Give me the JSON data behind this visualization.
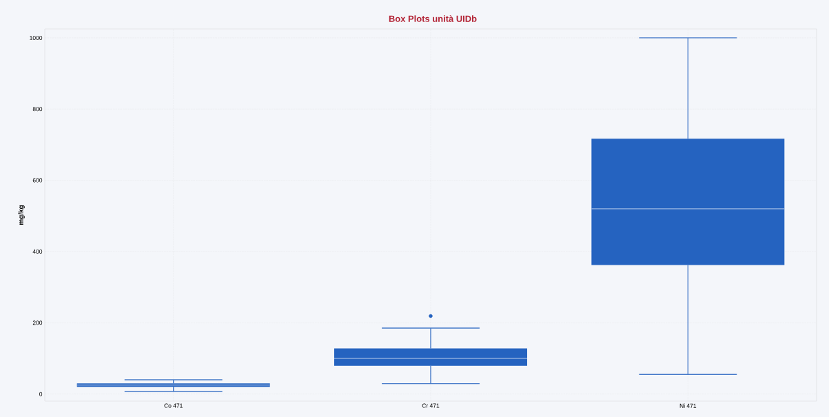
{
  "chart_data": {
    "type": "box",
    "title": "Box Plots unità UIDb",
    "ylabel": "mg/kg",
    "categories": [
      "Co 471",
      "Cr 471",
      "Ni 471"
    ],
    "boxes": [
      {
        "low": 7,
        "q1": 20,
        "median": 25,
        "q3": 30,
        "high": 40
      },
      {
        "low": 29,
        "q1": 79,
        "median": 100,
        "q3": 128,
        "high": 185,
        "outliers": [
          219
        ]
      },
      {
        "low": 55,
        "q1": 362,
        "median": 520,
        "q3": 717,
        "high": 1000
      }
    ],
    "color": "#2563c0",
    "ylim": [
      -20,
      1025
    ],
    "yticks": [
      0,
      200,
      400,
      600,
      800,
      1000
    ],
    "grid": true
  }
}
